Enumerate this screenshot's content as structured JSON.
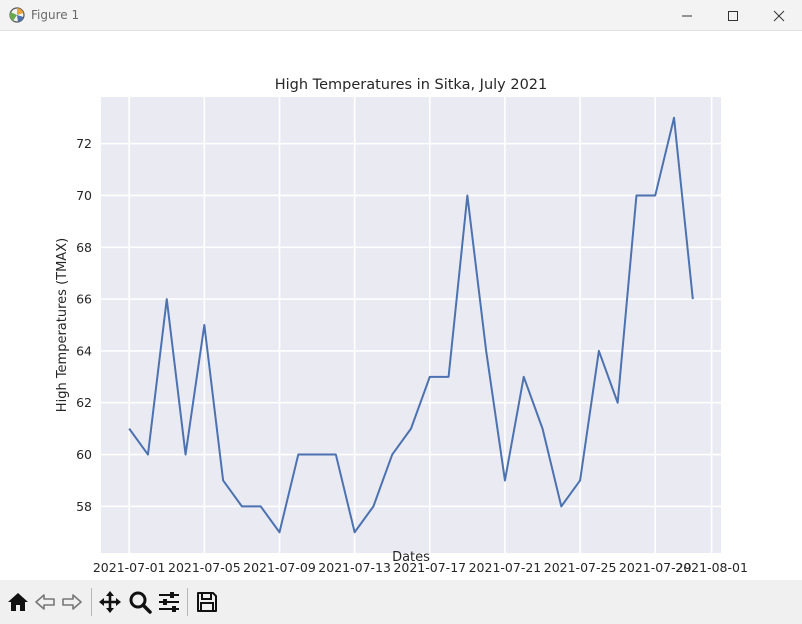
{
  "window": {
    "title": "Figure 1",
    "icon": "matplotlib-figure-icon",
    "controls": [
      "minimize-icon",
      "maximize-icon",
      "close-icon"
    ]
  },
  "toolbar": {
    "tools": [
      "home-icon",
      "back-arrow-icon",
      "forward-arrow-icon",
      "pan-move-icon",
      "zoom-magnifier-icon",
      "configure-subplots-icon",
      "save-icon"
    ]
  },
  "chart_data": {
    "type": "line",
    "title": "High Temperatures in Sitka, July 2021",
    "xlabel": "Dates",
    "ylabel": "High Temperatures (TMAX)",
    "x": [
      "2021-07-01",
      "2021-07-02",
      "2021-07-03",
      "2021-07-04",
      "2021-07-05",
      "2021-07-06",
      "2021-07-07",
      "2021-07-08",
      "2021-07-09",
      "2021-07-10",
      "2021-07-11",
      "2021-07-12",
      "2021-07-13",
      "2021-07-14",
      "2021-07-15",
      "2021-07-16",
      "2021-07-17",
      "2021-07-18",
      "2021-07-19",
      "2021-07-20",
      "2021-07-21",
      "2021-07-22",
      "2021-07-23",
      "2021-07-24",
      "2021-07-25",
      "2021-07-26",
      "2021-07-27",
      "2021-07-28",
      "2021-07-29",
      "2021-07-30",
      "2021-07-31"
    ],
    "series": [
      {
        "values": [
          61,
          60,
          66,
          60,
          65,
          59,
          58,
          58,
          57,
          60,
          60,
          60,
          57,
          58,
          60,
          61,
          63,
          63,
          70,
          64,
          59,
          63,
          61,
          58,
          59,
          64,
          62,
          70,
          70,
          73,
          66
        ]
      }
    ],
    "xticks": [
      "2021-07-01",
      "2021-07-05",
      "2021-07-09",
      "2021-07-13",
      "2021-07-17",
      "2021-07-21",
      "2021-07-25",
      "2021-07-29",
      "2021-08-01"
    ],
    "yticks": [
      58,
      60,
      62,
      64,
      66,
      68,
      70,
      72
    ],
    "xlim": [
      "2021-06-29.5",
      "2021-08-01.5"
    ],
    "ylim": [
      56.2,
      73.8
    ],
    "grid": true,
    "style": "seaborn",
    "line_color": "#4c72b0",
    "background_color": "#eaeaf2"
  }
}
